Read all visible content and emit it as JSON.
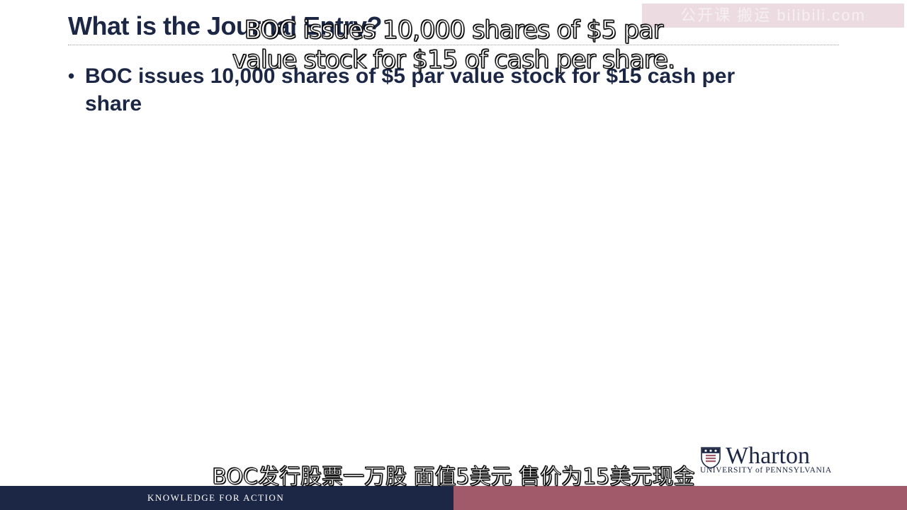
{
  "slide": {
    "title": "What is the Journal Entry?",
    "bullets": [
      "BOC issues 10,000 shares of $5 par value stock for $15 cash per share"
    ]
  },
  "captions": {
    "english": "BOC issues 10,000 shares of $5 par value stock for $15 of cash per share.",
    "chinese": "BOC发行股票一万股 面值5美元 售价为15美元现金"
  },
  "watermark": {
    "text": "公开课 搬运 bilibili.com"
  },
  "logo": {
    "name": "Wharton",
    "subtitle": "UNIVERSITY of PENNSYLVANIA",
    "icon": "penn-shield-icon"
  },
  "footer": {
    "tagline": "KNOWLEDGE FOR ACTION"
  },
  "colors": {
    "navy": "#1c2745",
    "maroon": "#a05a6a"
  }
}
